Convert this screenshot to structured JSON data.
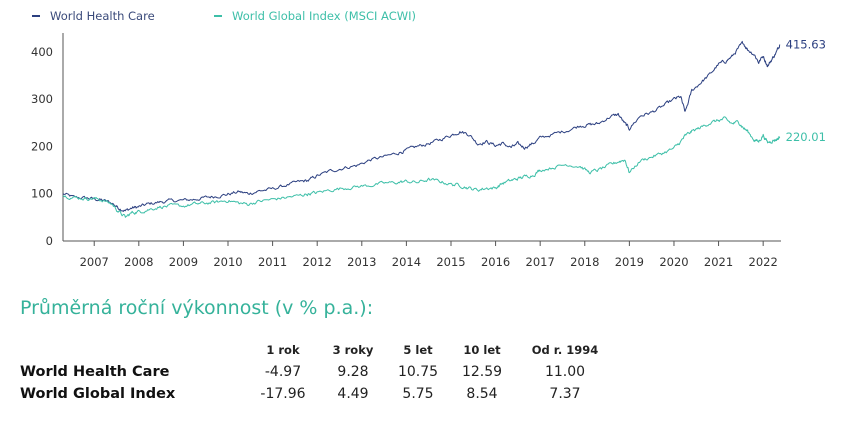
{
  "chart_data": {
    "type": "line",
    "title": "",
    "xlabel": "",
    "ylabel": "",
    "xlim": [
      2006.3,
      2022.4
    ],
    "ylim": [
      0,
      440
    ],
    "x_ticks": [
      "2007",
      "2008",
      "2009",
      "2010",
      "2011",
      "2012",
      "2013",
      "2014",
      "2015",
      "2016",
      "2017",
      "2018",
      "2019",
      "2020",
      "2021",
      "2022"
    ],
    "y_ticks": [
      0,
      100,
      200,
      300,
      400
    ],
    "legend_position": "top-left",
    "grid": false,
    "series": [
      {
        "name": "World Health Care",
        "color": "#2b3f80",
        "end_label": "415.63",
        "points": [
          [
            2006.3,
            100
          ],
          [
            2006.55,
            92
          ],
          [
            2006.8,
            91
          ],
          [
            2007.0,
            89
          ],
          [
            2007.2,
            86
          ],
          [
            2007.4,
            80
          ],
          [
            2007.55,
            70
          ],
          [
            2007.7,
            64
          ],
          [
            2007.85,
            70
          ],
          [
            2008.0,
            72
          ],
          [
            2008.2,
            78
          ],
          [
            2008.45,
            82
          ],
          [
            2008.7,
            85
          ],
          [
            2009.0,
            86
          ],
          [
            2009.25,
            88
          ],
          [
            2009.5,
            92
          ],
          [
            2009.75,
            95
          ],
          [
            2010.0,
            99
          ],
          [
            2010.25,
            104
          ],
          [
            2010.45,
            100
          ],
          [
            2010.7,
            106
          ],
          [
            2011.0,
            110
          ],
          [
            2011.3,
            118
          ],
          [
            2011.6,
            125
          ],
          [
            2011.8,
            128
          ],
          [
            2012.0,
            138
          ],
          [
            2012.3,
            148
          ],
          [
            2012.6,
            155
          ],
          [
            2012.9,
            160
          ],
          [
            2013.2,
            172
          ],
          [
            2013.5,
            178
          ],
          [
            2013.8,
            186
          ],
          [
            2014.0,
            192
          ],
          [
            2014.25,
            200
          ],
          [
            2014.5,
            206
          ],
          [
            2014.75,
            214
          ],
          [
            2015.0,
            224
          ],
          [
            2015.2,
            232
          ],
          [
            2015.4,
            226
          ],
          [
            2015.6,
            206
          ],
          [
            2015.8,
            210
          ],
          [
            2016.0,
            202
          ],
          [
            2016.15,
            206
          ],
          [
            2016.35,
            198
          ],
          [
            2016.5,
            205
          ],
          [
            2016.65,
            198
          ],
          [
            2016.85,
            207
          ],
          [
            2017.0,
            218
          ],
          [
            2017.3,
            226
          ],
          [
            2017.6,
            234
          ],
          [
            2017.9,
            244
          ],
          [
            2018.1,
            246
          ],
          [
            2018.3,
            248
          ],
          [
            2018.55,
            262
          ],
          [
            2018.75,
            268
          ],
          [
            2018.9,
            248
          ],
          [
            2019.0,
            238
          ],
          [
            2019.25,
            265
          ],
          [
            2019.5,
            272
          ],
          [
            2019.75,
            285
          ],
          [
            2020.0,
            300
          ],
          [
            2020.15,
            305
          ],
          [
            2020.25,
            272
          ],
          [
            2020.4,
            318
          ],
          [
            2020.6,
            335
          ],
          [
            2020.8,
            352
          ],
          [
            2021.0,
            374
          ],
          [
            2021.15,
            380
          ],
          [
            2021.3,
            390
          ],
          [
            2021.45,
            408
          ],
          [
            2021.55,
            420
          ],
          [
            2021.65,
            405
          ],
          [
            2021.8,
            395
          ],
          [
            2021.9,
            378
          ],
          [
            2022.0,
            392
          ],
          [
            2022.1,
            370
          ],
          [
            2022.2,
            385
          ],
          [
            2022.3,
            400
          ],
          [
            2022.37,
            415.63
          ]
        ]
      },
      {
        "name": "World Global Index (MSCI ACWI)",
        "color": "#3dbfa8",
        "end_label": "220.01",
        "points": [
          [
            2006.3,
            96
          ],
          [
            2006.55,
            92
          ],
          [
            2006.8,
            90
          ],
          [
            2007.0,
            90
          ],
          [
            2007.2,
            86
          ],
          [
            2007.4,
            78
          ],
          [
            2007.55,
            62
          ],
          [
            2007.7,
            50
          ],
          [
            2007.85,
            60
          ],
          [
            2008.0,
            62
          ],
          [
            2008.2,
            66
          ],
          [
            2008.45,
            72
          ],
          [
            2008.7,
            74
          ],
          [
            2009.0,
            74
          ],
          [
            2009.25,
            78
          ],
          [
            2009.5,
            80
          ],
          [
            2009.75,
            82
          ],
          [
            2010.0,
            86
          ],
          [
            2010.25,
            80
          ],
          [
            2010.45,
            78
          ],
          [
            2010.7,
            84
          ],
          [
            2011.0,
            88
          ],
          [
            2011.3,
            92
          ],
          [
            2011.6,
            96
          ],
          [
            2011.8,
            100
          ],
          [
            2012.0,
            102
          ],
          [
            2012.3,
            108
          ],
          [
            2012.6,
            112
          ],
          [
            2012.9,
            115
          ],
          [
            2013.2,
            118
          ],
          [
            2013.5,
            122
          ],
          [
            2013.8,
            124
          ],
          [
            2014.0,
            126
          ],
          [
            2014.25,
            124
          ],
          [
            2014.5,
            130
          ],
          [
            2014.75,
            126
          ],
          [
            2015.0,
            120
          ],
          [
            2015.2,
            118
          ],
          [
            2015.4,
            112
          ],
          [
            2015.6,
            108
          ],
          [
            2015.8,
            112
          ],
          [
            2016.0,
            112
          ],
          [
            2016.15,
            122
          ],
          [
            2016.35,
            128
          ],
          [
            2016.5,
            132
          ],
          [
            2016.65,
            136
          ],
          [
            2016.85,
            140
          ],
          [
            2017.0,
            150
          ],
          [
            2017.3,
            156
          ],
          [
            2017.6,
            162
          ],
          [
            2017.9,
            158
          ],
          [
            2018.1,
            145
          ],
          [
            2018.3,
            150
          ],
          [
            2018.55,
            160
          ],
          [
            2018.75,
            168
          ],
          [
            2018.9,
            172
          ],
          [
            2019.0,
            145
          ],
          [
            2019.25,
            170
          ],
          [
            2019.5,
            178
          ],
          [
            2019.75,
            186
          ],
          [
            2020.0,
            196
          ],
          [
            2020.15,
            210
          ],
          [
            2020.25,
            222
          ],
          [
            2020.4,
            232
          ],
          [
            2020.6,
            240
          ],
          [
            2020.8,
            250
          ],
          [
            2021.0,
            255
          ],
          [
            2021.15,
            258
          ],
          [
            2021.3,
            248
          ],
          [
            2021.45,
            252
          ],
          [
            2021.55,
            240
          ],
          [
            2021.65,
            232
          ],
          [
            2021.8,
            214
          ],
          [
            2021.9,
            210
          ],
          [
            2022.0,
            224
          ],
          [
            2022.1,
            208
          ],
          [
            2022.2,
            212
          ],
          [
            2022.3,
            215
          ],
          [
            2022.37,
            220.01
          ]
        ]
      }
    ]
  },
  "performance": {
    "title": "Průměrná roční výkonnost (v % p.a.):",
    "headers": [
      "1 rok",
      "3 roky",
      "5 let",
      "10 let",
      "Od r. 1994"
    ],
    "rows": [
      {
        "label": "World Health Care",
        "values": [
          "-4.97",
          "9.28",
          "10.75",
          "12.59",
          "11.00"
        ]
      },
      {
        "label": "World Global Index",
        "values": [
          "-17.96",
          "4.49",
          "5.75",
          "8.54",
          "7.37"
        ]
      }
    ]
  }
}
